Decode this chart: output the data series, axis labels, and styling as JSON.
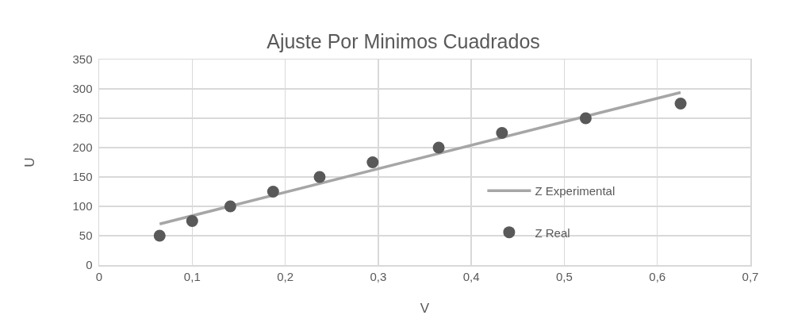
{
  "chart_data": {
    "type": "scatter",
    "title": "Ajuste Por Minimos Cuadrados",
    "xlabel": "V",
    "ylabel": "U",
    "x": [
      0.065,
      0.1,
      0.141,
      0.187,
      0.237,
      0.294,
      0.365,
      0.433,
      0.523,
      0.625
    ],
    "series": [
      {
        "name": "Z Experimental",
        "type": "line",
        "color": "#a6a6a6",
        "marker": "none",
        "x": [
          0.065,
          0.625
        ],
        "values": [
          70,
          294
        ]
      },
      {
        "name": "Z Real",
        "color": "#595959",
        "marker": "circle",
        "values": [
          50,
          75,
          100,
          125,
          150,
          175,
          200,
          225,
          250,
          275
        ]
      }
    ],
    "xlim": [
      0,
      0.7
    ],
    "xticks": [
      0,
      {
        "value": 0.1,
        "label": "0,1"
      },
      {
        "value": 0.2,
        "label": "0,2"
      },
      {
        "value": 0.3,
        "label": "0,3"
      },
      {
        "value": 0.4,
        "label": "0,4"
      },
      {
        "value": 0.5,
        "label": "0,5"
      },
      {
        "value": 0.6,
        "label": "0,6"
      },
      {
        "value": 0.7,
        "label": "0,7"
      }
    ],
    "ylim": [
      0,
      350
    ],
    "yticks": [
      0,
      50,
      100,
      150,
      200,
      250,
      300,
      350
    ],
    "grid": true,
    "legend": "bottom right",
    "line_style": "solid"
  }
}
